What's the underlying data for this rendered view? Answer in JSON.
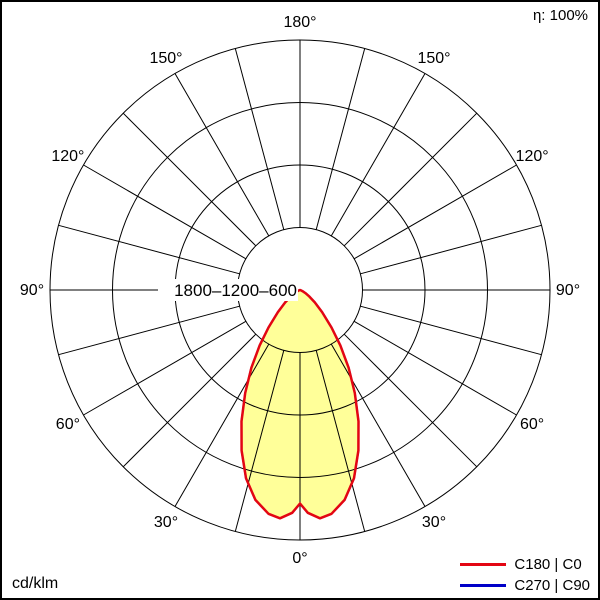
{
  "chart_data": {
    "type": "polar-line",
    "title": "Luminous intensity distribution",
    "unit_label": "cd/klm",
    "efficiency_label": "η: 100%",
    "angle_unit": "°",
    "angle_ticks_deg": [
      0,
      30,
      60,
      90,
      120,
      150,
      180
    ],
    "angle_grid_step_deg": 15,
    "r_max": 2400,
    "r_rings": [
      600,
      1200,
      1800,
      2400
    ],
    "r_axis_label": "1800–1200–600",
    "colors": {
      "grid": "#000000",
      "fill": "#ffff99",
      "c0": "#e30613",
      "c90": "#0000c8",
      "background": "#ffffff"
    },
    "series": [
      {
        "name": "C180 | C0",
        "angles_deg": [
          -70,
          -65,
          -60,
          -55,
          -50,
          -45,
          -40,
          -36,
          -32,
          -28,
          -24,
          -20,
          -16,
          -12,
          -8,
          -5,
          -2,
          0,
          2,
          5,
          8,
          12,
          16,
          20,
          24,
          28,
          32,
          36,
          40,
          45,
          50,
          55,
          60,
          65,
          70
        ],
        "values": [
          10,
          28,
          60,
          110,
          185,
          300,
          470,
          660,
          880,
          1120,
          1380,
          1640,
          1880,
          2060,
          2170,
          2200,
          2140,
          2050,
          2140,
          2200,
          2170,
          2060,
          1880,
          1640,
          1380,
          1120,
          880,
          660,
          470,
          300,
          185,
          110,
          60,
          28,
          10
        ]
      },
      {
        "name": "C270 | C90",
        "angles_deg": [
          -70,
          -65,
          -60,
          -55,
          -50,
          -45,
          -40,
          -36,
          -32,
          -28,
          -24,
          -20,
          -16,
          -12,
          -8,
          -5,
          -2,
          0,
          2,
          5,
          8,
          12,
          16,
          20,
          24,
          28,
          32,
          36,
          40,
          45,
          50,
          55,
          60,
          65,
          70
        ],
        "values": [
          10,
          28,
          60,
          110,
          185,
          300,
          470,
          660,
          880,
          1120,
          1380,
          1640,
          1880,
          2060,
          2170,
          2200,
          2140,
          2050,
          2140,
          2200,
          2170,
          2060,
          1880,
          1640,
          1380,
          1120,
          880,
          660,
          470,
          300,
          185,
          110,
          60,
          28,
          10
        ]
      }
    ],
    "legend": [
      {
        "label": "C180 | C0",
        "color": "#e30613"
      },
      {
        "label": "C270 | C90",
        "color": "#0000c8"
      }
    ]
  }
}
